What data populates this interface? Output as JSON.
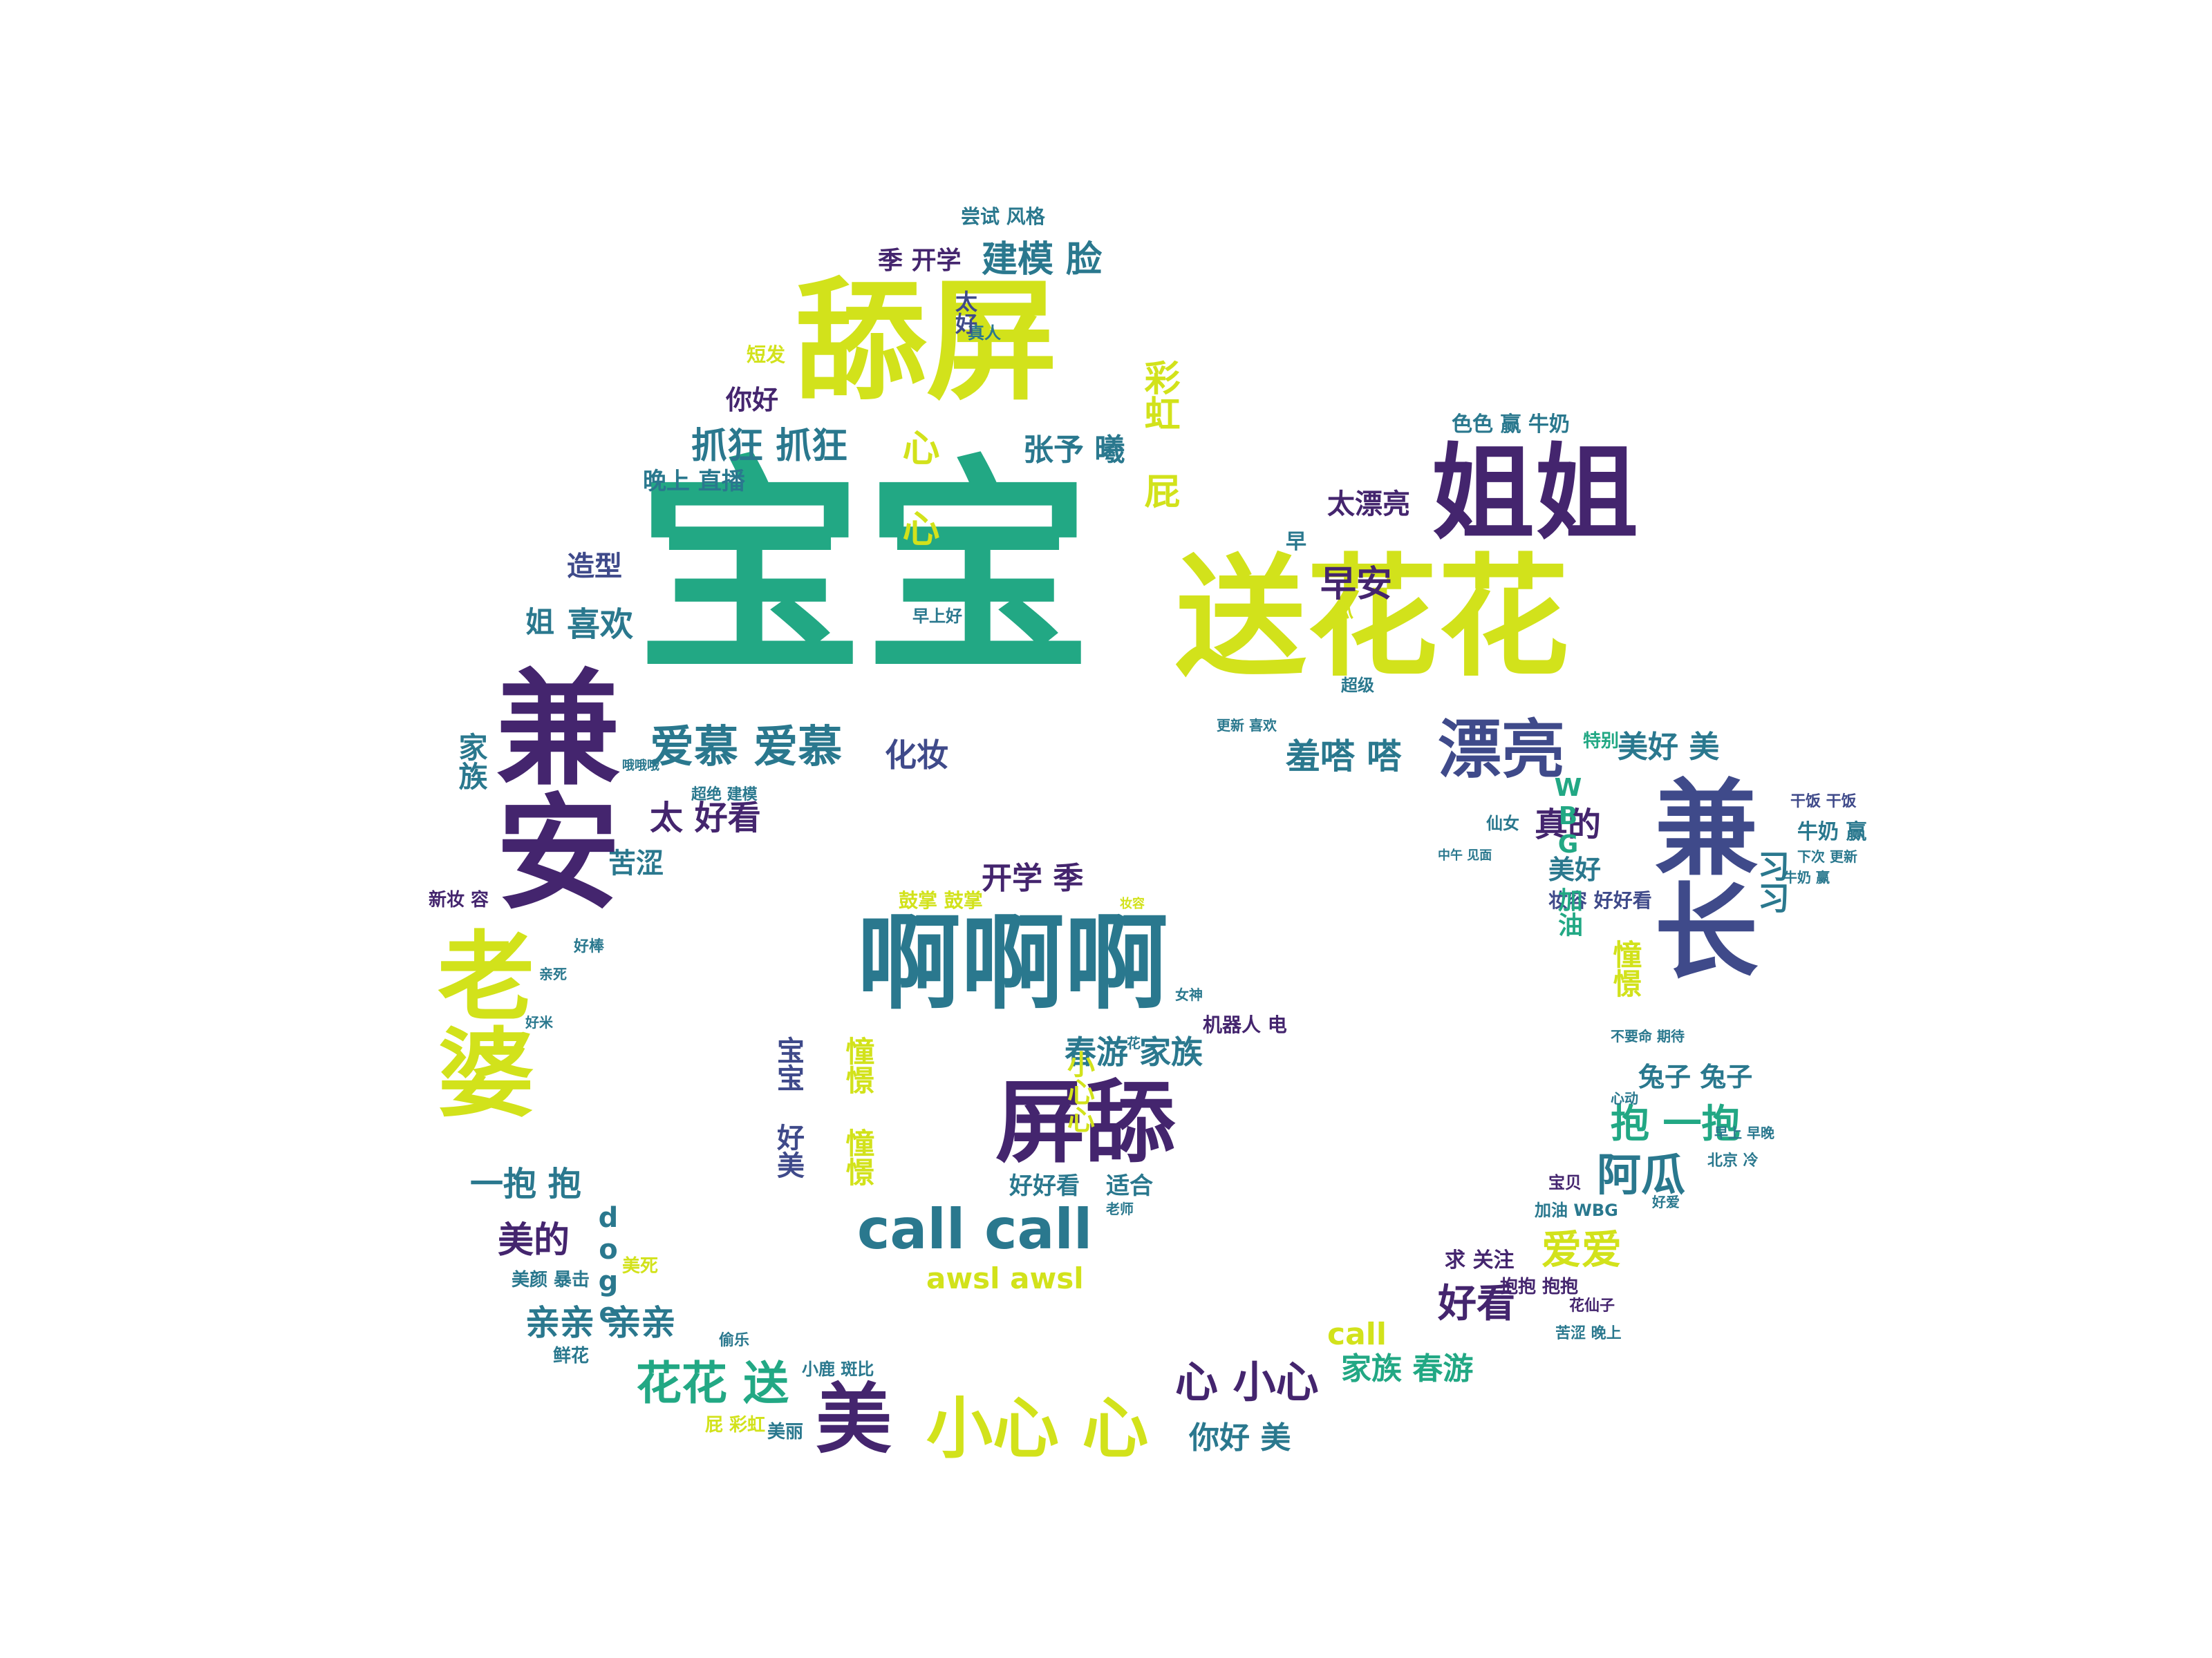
{
  "colors": [
    "#22a884",
    "#d2e21b",
    "#44256e",
    "#2a788e",
    "#3f4a8a",
    "#7ad151",
    "#1f9e89",
    "#482475",
    "#35b779"
  ],
  "words": [
    {
      "text": "宝宝",
      "color": 0
    },
    {
      "text": "送花花",
      "color": 1
    },
    {
      "text": "舔屏",
      "color": 1
    },
    {
      "text": "姐姐",
      "color": 2
    },
    {
      "text": "漂亮",
      "color": 4
    },
    {
      "text": "早安",
      "color": 2
    },
    {
      "text": "太漂亮",
      "color": 2
    },
    {
      "text": "美好 美",
      "color": 3
    },
    {
      "text": "真的",
      "color": 2
    },
    {
      "text": "美好",
      "color": 3
    },
    {
      "text": "羞嗒 嗒",
      "color": 3
    },
    {
      "text": "爱慕 爱慕",
      "color": 3
    },
    {
      "text": "化妆",
      "color": 4
    },
    {
      "text": "太 好看",
      "color": 2
    },
    {
      "text": "喜欢",
      "color": 3
    },
    {
      "text": "造型",
      "color": 4
    },
    {
      "text": "晚上 直播",
      "color": 3
    },
    {
      "text": "抓狂 抓狂",
      "color": 3
    },
    {
      "text": "心 心",
      "color": 1
    },
    {
      "text": "张予 曦",
      "color": 3
    },
    {
      "text": "彩虹 屁",
      "color": 1
    },
    {
      "text": "你好",
      "color": 2
    },
    {
      "text": "建模 脸",
      "color": 3
    },
    {
      "text": "季 开学",
      "color": 2
    },
    {
      "text": "尝试 风格",
      "color": 3
    },
    {
      "text": "啊啊啊",
      "color": 3
    },
    {
      "text": "开学 季",
      "color": 2
    },
    {
      "text": "屏舔",
      "color": 2
    },
    {
      "text": "春游 家族",
      "color": 3
    },
    {
      "text": "call call",
      "color": 3
    },
    {
      "text": "awsl awsl",
      "color": 1
    },
    {
      "text": "好好看",
      "color": 3
    },
    {
      "text": "适合",
      "color": 3
    },
    {
      "text": "鼓掌 鼓掌",
      "color": 1
    },
    {
      "text": "机器人 电",
      "color": 2
    },
    {
      "text": "心 小心",
      "color": 2
    },
    {
      "text": "小心 心",
      "color": 1
    },
    {
      "text": "家族 春游",
      "color": 0
    },
    {
      "text": "花花 送",
      "color": 0
    },
    {
      "text": "美",
      "color": 2
    },
    {
      "text": "亲亲 亲亲",
      "color": 3
    },
    {
      "text": "美的",
      "color": 2
    },
    {
      "text": "一抱 抱",
      "color": 3
    },
    {
      "text": "你好 美",
      "color": 3
    },
    {
      "text": "好看",
      "color": 2
    },
    {
      "text": "爱爱",
      "color": 1
    },
    {
      "text": "call",
      "color": 1
    },
    {
      "text": "求 关注",
      "color": 2
    },
    {
      "text": "阿瓜",
      "color": 3
    },
    {
      "text": "抱 一抱",
      "color": 0
    },
    {
      "text": "兔子 兔子",
      "color": 3
    },
    {
      "text": "妆容 好好看",
      "color": 4
    },
    {
      "text": "牛奶 赢",
      "color": 3
    },
    {
      "text": "色色 赢 牛奶",
      "color": 3
    },
    {
      "text": "苦涩",
      "color": 3
    },
    {
      "text": "超绝 建模",
      "color": 3
    },
    {
      "text": "特别",
      "color": 0
    },
    {
      "text": "仙女",
      "color": 3
    },
    {
      "text": "加油 WBG",
      "color": 3
    },
    {
      "text": "宝贝",
      "color": 2
    },
    {
      "text": "抱抱 抱抱",
      "color": 2
    },
    {
      "text": "花仙子",
      "color": 2
    },
    {
      "text": "苦涩 晚上",
      "color": 3
    },
    {
      "text": "美颜 暴击",
      "color": 3
    },
    {
      "text": "美死",
      "color": 1
    },
    {
      "text": "鲜花",
      "color": 3
    },
    {
      "text": "小鹿 斑比",
      "color": 3
    },
    {
      "text": "屁 彩虹",
      "color": 1
    },
    {
      "text": "美丽",
      "color": 3
    },
    {
      "text": "早上好",
      "color": 3
    },
    {
      "text": "超级",
      "color": 3
    },
    {
      "text": "早",
      "color": 3
    },
    {
      "text": "好棒",
      "color": 3
    },
    {
      "text": "新妆 容",
      "color": 2
    },
    {
      "text": "亲死",
      "color": 3
    },
    {
      "text": "干饭 干饭",
      "color": 4
    },
    {
      "text": "下次 更新",
      "color": 3
    },
    {
      "text": "短发",
      "color": 1
    },
    {
      "text": "更新 喜欢",
      "color": 3
    },
    {
      "text": "哦哦哦",
      "color": 3
    },
    {
      "text": "老师",
      "color": 3
    },
    {
      "text": "不要命 期待",
      "color": 3
    },
    {
      "text": "好爱",
      "color": 3
    },
    {
      "text": "女神",
      "color": 3
    },
    {
      "text": "好米",
      "color": 3
    },
    {
      "text": "心动",
      "color": 3
    },
    {
      "text": "偷乐",
      "color": 3
    },
    {
      "text": "北京 冷",
      "color": 3
    },
    {
      "text": "姐",
      "color": 3
    },
    {
      "text": "中午 见面",
      "color": 3
    },
    {
      "text": "真人",
      "color": 3
    },
    {
      "text": "花",
      "color": 3
    },
    {
      "text": "早上 早晚",
      "color": 3
    },
    {
      "text": "牛奶 赢",
      "color": 3
    },
    {
      "text": "瓜",
      "color": 1
    },
    {
      "text": "妆容",
      "color": 1
    }
  ]
}
